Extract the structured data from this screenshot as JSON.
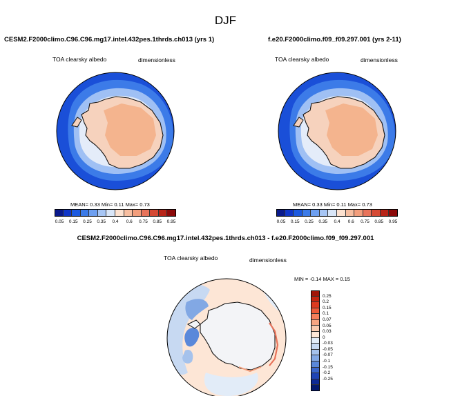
{
  "figure": {
    "season": "DJF"
  },
  "panel_left": {
    "case_title": "CESM2.F2000climo.C96.C96.mg17.intel.432pes.1thrds.ch013 (yrs 1)",
    "variable": "TOA clearsky albedo",
    "units": "dimensionless",
    "mean_label": "MEAN=",
    "mean_value": "0.33",
    "min_label": "Min=",
    "min_value": "0.11",
    "max_label": "Max=",
    "max_value": "0.73"
  },
  "panel_right": {
    "case_title": "f.e20.F2000climo.f09_f09.297.001 (yrs 2-11)",
    "variable": "TOA clearsky albedo",
    "units": "dimensionless",
    "mean_label": "MEAN=",
    "mean_value": "0.33",
    "min_label": "Min=",
    "min_value": "0.11",
    "max_label": "Max=",
    "max_value": "0.73"
  },
  "panel_diff": {
    "case_title": "CESM2.F2000climo.C96.C96.mg17.intel.432pes.1thrds.ch013 - f.e20.F2000climo.f09_f09.297.001",
    "variable": "TOA clearsky albedo",
    "units": "dimensionless",
    "min_label": "MIN =",
    "min_value": "-0.14",
    "max_label": "MAX =",
    "max_value": "0.15"
  },
  "colorbar_abs": {
    "colors": [
      "#0a1a8c",
      "#1036c8",
      "#1c5ae0",
      "#3c7be8",
      "#6d9ff0",
      "#a7c6f5",
      "#d9e6f8",
      "#fde2d0",
      "#f7bea0",
      "#f29e7c",
      "#e8735a",
      "#d64a35",
      "#b82418",
      "#8c0a0a"
    ],
    "labels": [
      "0.05",
      "0.15",
      "0.25",
      "0.35",
      "0.4",
      "0.6",
      "0.75",
      "0.85",
      "0.95"
    ]
  },
  "colorbar_diff": {
    "colors": [
      "#a11508",
      "#c42510",
      "#dc3a1f",
      "#ec5a38",
      "#f47e5a",
      "#f8a582",
      "#fbcbb0",
      "#fde6d6",
      "#e2ecf8",
      "#c7d9f2",
      "#a5c2ec",
      "#82a8e4",
      "#5a88da",
      "#3a66cc",
      "#1e44b5",
      "#0e2a96",
      "#051a6e"
    ],
    "labels": [
      "0.25",
      "0.2",
      "0.15",
      "0.1",
      "0.07",
      "0.05",
      "0.03",
      "0",
      "-0.03",
      "-0.05",
      "-0.07",
      "-0.1",
      "-0.15",
      "-0.2",
      "-0.25"
    ]
  }
}
